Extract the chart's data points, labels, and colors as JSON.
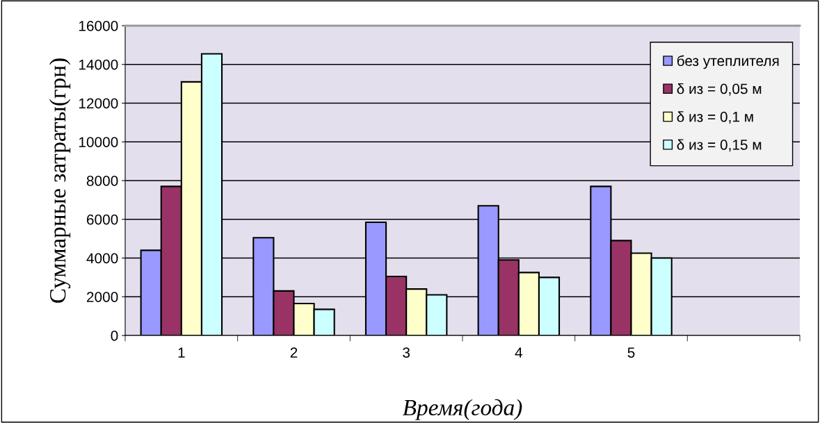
{
  "chart_data": {
    "type": "bar",
    "xlabel": "Время(года)",
    "ylabel": "Суммарные затраты(грн)",
    "categories": [
      "1",
      "2",
      "3",
      "4",
      "5",
      null
    ],
    "series": [
      {
        "name": "без утеплителя",
        "color": "#9999ff",
        "values": [
          4400,
          5050,
          5850,
          6700,
          7700,
          null
        ]
      },
      {
        "name": "δ из = 0,05 м",
        "color": "#993366",
        "values": [
          7700,
          2300,
          3050,
          3900,
          4900,
          null
        ]
      },
      {
        "name": "δ из = 0,1 м",
        "color": "#ffffcc",
        "values": [
          13100,
          1650,
          2400,
          3250,
          4250,
          null
        ]
      },
      {
        "name": "δ из = 0,15 м",
        "color": "#ccffff",
        "values": [
          14550,
          1350,
          2100,
          3000,
          4000,
          null
        ]
      }
    ],
    "ylim": [
      0,
      16000
    ],
    "yticks": [
      0,
      2000,
      4000,
      6000,
      8000,
      10000,
      12000,
      14000,
      16000
    ],
    "grid": "y",
    "legend": "top right"
  }
}
